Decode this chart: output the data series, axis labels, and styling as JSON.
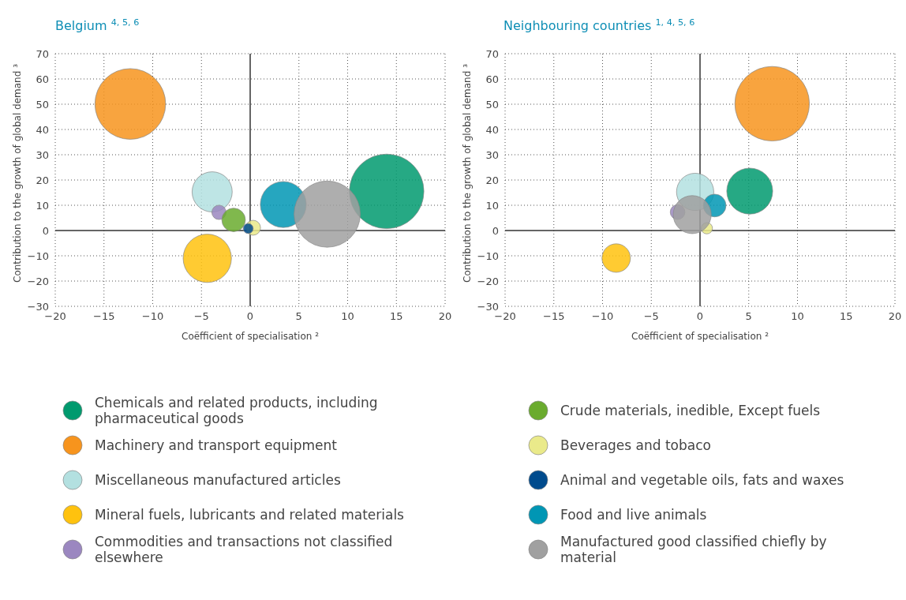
{
  "chart_data": [
    {
      "type": "bubble",
      "title": "Belgium $^{4, 5, 6}$",
      "xlabel": "Coëfficient of specialisation ²",
      "ylabel": "Contribution to the growth of global demand ³",
      "xlim": [
        -20,
        20
      ],
      "xticks": [
        -20,
        -15,
        -10,
        -5,
        0,
        5,
        10,
        15,
        20
      ],
      "ylim": [
        -30,
        70
      ],
      "yticks": [
        -30,
        -20,
        -10,
        0,
        10,
        20,
        30,
        40,
        50,
        60,
        70
      ],
      "grid": true,
      "legend": "bottom",
      "series": [
        {
          "name": "Chemicals and related products, including pharmaceutical goods",
          "color": "#009a6e",
          "x": [
            14.0
          ],
          "values": [
            15.5
          ],
          "sizes": [
            1
          ]
        },
        {
          "name": "Machinery and transport equipment",
          "color": "#f7941d",
          "x": [
            -12.3
          ],
          "values": [
            50.1
          ],
          "sizes": [
            0.9
          ]
        },
        {
          "name": "Miscellaneous manufactured articles",
          "color": "#b3e0e0",
          "x": [
            -3.9
          ],
          "values": [
            15.3
          ],
          "sizes": [
            0.29
          ]
        },
        {
          "name": "Mineral fuels, lubricants and related materials",
          "color": "#ffc20e",
          "x": [
            -4.4
          ],
          "values": [
            -11.0
          ],
          "sizes": [
            0.42
          ]
        },
        {
          "name": "Commodities and transactions not classified elsewhere",
          "color": "#9b87c0",
          "x": [
            -3.2
          ],
          "values": [
            7.2
          ],
          "sizes": [
            0.037
          ]
        },
        {
          "name": "Crude materials, inedible, Except fuels",
          "color": "#6aab2e",
          "x": [
            -1.7
          ],
          "values": [
            4.2
          ],
          "sizes": [
            0.1
          ]
        },
        {
          "name": "Beverages and tobaco",
          "color": "#eaea8a",
          "x": [
            0.3
          ],
          "values": [
            1.1
          ],
          "sizes": [
            0.04
          ]
        },
        {
          "name": "Animal and vegetable oils, fats and waxes",
          "color": "#004b8d",
          "x": [
            -0.2
          ],
          "values": [
            0.8
          ],
          "sizes": [
            0.018
          ]
        },
        {
          "name": "Food and live animals",
          "color": "#0096b4",
          "x": [
            3.4
          ],
          "values": [
            10.3
          ],
          "sizes": [
            0.38
          ]
        },
        {
          "name": "Manufactured good classified chiefly by material",
          "color": "#a0a0a0",
          "x": [
            7.9
          ],
          "values": [
            6.5
          ],
          "sizes": [
            0.79
          ]
        }
      ]
    },
    {
      "type": "bubble",
      "title": "Neighbouring countries $^{1, 4, 5, 6}$",
      "xlabel": "Coëfficient of specialisation ²",
      "ylabel": "Contribution to the growth of global demand ³",
      "xlim": [
        -20,
        20
      ],
      "xticks": [
        -20,
        -15,
        -10,
        -5,
        0,
        5,
        10,
        15,
        20
      ],
      "ylim": [
        -30,
        70
      ],
      "yticks": [
        -30,
        -20,
        -10,
        0,
        10,
        20,
        30,
        40,
        50,
        60,
        70
      ],
      "grid": true,
      "series": [
        {
          "color": "#009a6e",
          "x": [
            5.1
          ],
          "values": [
            15.6
          ],
          "sizes": [
            0.38
          ]
        },
        {
          "color": "#f7941d",
          "x": [
            7.4
          ],
          "values": [
            50.2
          ],
          "sizes": [
            1
          ]
        },
        {
          "color": "#b3e0e0",
          "x": [
            -0.5
          ],
          "values": [
            15.3
          ],
          "sizes": [
            0.25
          ]
        },
        {
          "color": "#ffc20e",
          "x": [
            -8.6
          ],
          "values": [
            -10.9
          ],
          "sizes": [
            0.146
          ]
        },
        {
          "color": "#9b87c0",
          "x": [
            -2.3
          ],
          "values": [
            7.3
          ],
          "sizes": [
            0.039
          ]
        },
        {
          "color": "#6aab2e",
          "x": [
            null
          ],
          "values": [
            null
          ],
          "sizes": [
            null
          ]
        },
        {
          "color": "#eaea8a",
          "x": [
            0.7
          ],
          "values": [
            0.9
          ],
          "sizes": [
            0.023
          ]
        },
        {
          "color": "#004b8d",
          "x": [
            null
          ],
          "values": [
            null
          ],
          "sizes": [
            null
          ]
        },
        {
          "color": "#0096b4",
          "x": [
            1.5
          ],
          "values": [
            9.9
          ],
          "sizes": [
            0.093
          ]
        },
        {
          "color": "#a0a0a0",
          "x": [
            -0.8
          ],
          "values": [
            6.3
          ],
          "sizes": [
            0.26
          ]
        }
      ]
    }
  ]
}
